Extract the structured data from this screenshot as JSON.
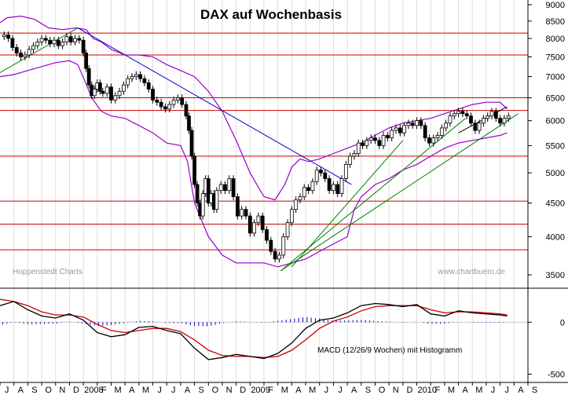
{
  "chart_data": {
    "type": "line",
    "title": "DAX auf Wochenbasis",
    "credit_left": "Hoppenstedt Charts",
    "credit_right": "www.chartbuero.de",
    "macd_label": "MACD (12/26/9 Wochen) mit Histogramm",
    "price_axis": {
      "scale": "log",
      "range": [
        3350,
        9150
      ],
      "ticks": [
        {
          "value": 9000,
          "label": "9000"
        },
        {
          "value": 8500,
          "label": "8500"
        },
        {
          "value": 8000,
          "label": "8000"
        },
        {
          "value": 7500,
          "label": "7500"
        },
        {
          "value": 7000,
          "label": "7000"
        },
        {
          "value": 6500,
          "label": "6500"
        },
        {
          "value": 6000,
          "label": "6000"
        },
        {
          "value": 5500,
          "label": "5500"
        },
        {
          "value": 5000,
          "label": "5000"
        },
        {
          "value": 4500,
          "label": "4500"
        },
        {
          "value": 4000,
          "label": "4000"
        },
        {
          "value": 3500,
          "label": "3500"
        }
      ]
    },
    "macd_axis": {
      "range": [
        -580,
        320
      ],
      "ticks": [
        {
          "value": 0,
          "label": "0"
        },
        {
          "value": -500,
          "label": "-500"
        }
      ]
    },
    "time_axis": {
      "start": "2007-07",
      "end": "2010-09",
      "labels": [
        "J",
        "A",
        "S",
        "O",
        "N",
        "D",
        "2008",
        "F",
        "M",
        "A",
        "M",
        "J",
        "J",
        "A",
        "S",
        "O",
        "N",
        "D",
        "2009",
        "F",
        "M",
        "A",
        "M",
        "J",
        "J",
        "A",
        "S",
        "O",
        "N",
        "D",
        "2010",
        "F",
        "M",
        "A",
        "M",
        "J",
        "J",
        "A",
        "S"
      ]
    },
    "horizontal_levels": [
      8150,
      7550,
      6500,
      6220,
      5300,
      4530,
      4180,
      3820
    ],
    "trendlines": [
      {
        "color": "#0000cc",
        "from": {
          "t": 5.6,
          "v": 8300
        },
        "to": {
          "t": 25.3,
          "v": 4800
        }
      },
      {
        "color": "#008000",
        "from": {
          "t": 0.0,
          "v": 7100
        },
        "to": {
          "t": 5.6,
          "v": 8300
        }
      },
      {
        "color": "#008000",
        "from": {
          "t": 20.2,
          "v": 3550
        },
        "to": {
          "t": 37.3,
          "v": 6150
        }
      },
      {
        "color": "#008000",
        "from": {
          "t": 20.2,
          "v": 3550
        },
        "to": {
          "t": 33.5,
          "v": 6050
        }
      },
      {
        "color": "#008000",
        "from": {
          "t": 21.0,
          "v": 3600
        },
        "to": {
          "t": 29.0,
          "v": 5600
        }
      },
      {
        "color": "#000000",
        "from": {
          "t": 33.0,
          "v": 5750
        },
        "to": {
          "t": 36.5,
          "v": 6300
        }
      }
    ],
    "bollinger_upper": [
      [
        0.0,
        8450
      ],
      [
        0.5,
        8600
      ],
      [
        1.5,
        8650
      ],
      [
        2.5,
        8550
      ],
      [
        3.5,
        8300
      ],
      [
        4.5,
        8250
      ],
      [
        5.5,
        8300
      ],
      [
        6.2,
        8250
      ],
      [
        6.7,
        8000
      ],
      [
        7.3,
        7900
      ],
      [
        8.0,
        7700
      ],
      [
        9.0,
        7550
      ],
      [
        10.0,
        7550
      ],
      [
        11.0,
        7500
      ],
      [
        12.0,
        7300
      ],
      [
        13.0,
        7150
      ],
      [
        14.0,
        7000
      ],
      [
        15.0,
        6650
      ],
      [
        16.0,
        6200
      ],
      [
        17.0,
        5600
      ],
      [
        18.0,
        5000
      ],
      [
        19.0,
        4600
      ],
      [
        19.8,
        4550
      ],
      [
        20.5,
        4800
      ],
      [
        21.0,
        5100
      ],
      [
        21.6,
        5250
      ],
      [
        22.2,
        5200
      ],
      [
        23.0,
        5250
      ],
      [
        24.0,
        5350
      ],
      [
        25.0,
        5450
      ],
      [
        26.0,
        5550
      ],
      [
        27.0,
        5700
      ],
      [
        28.0,
        5850
      ],
      [
        29.0,
        5950
      ],
      [
        30.0,
        6000
      ],
      [
        31.0,
        6050
      ],
      [
        32.0,
        6150
      ],
      [
        33.0,
        6250
      ],
      [
        34.0,
        6350
      ],
      [
        35.0,
        6400
      ],
      [
        36.0,
        6400
      ],
      [
        36.5,
        6250
      ]
    ],
    "bollinger_lower": [
      [
        0.0,
        7000
      ],
      [
        1.0,
        7050
      ],
      [
        2.0,
        7150
      ],
      [
        3.0,
        7250
      ],
      [
        4.0,
        7350
      ],
      [
        5.0,
        7400
      ],
      [
        5.6,
        7300
      ],
      [
        6.1,
        6900
      ],
      [
        6.6,
        6500
      ],
      [
        7.3,
        6200
      ],
      [
        8.0,
        6100
      ],
      [
        9.0,
        6050
      ],
      [
        10.0,
        5900
      ],
      [
        11.0,
        5750
      ],
      [
        12.0,
        5550
      ],
      [
        13.0,
        5500
      ],
      [
        13.5,
        5200
      ],
      [
        14.0,
        4500
      ],
      [
        15.0,
        4000
      ],
      [
        16.0,
        3750
      ],
      [
        17.0,
        3650
      ],
      [
        18.0,
        3650
      ],
      [
        19.0,
        3650
      ],
      [
        20.0,
        3600
      ],
      [
        21.0,
        3650
      ],
      [
        22.0,
        3700
      ],
      [
        23.0,
        3800
      ],
      [
        24.0,
        3900
      ],
      [
        25.0,
        4000
      ],
      [
        25.5,
        4400
      ],
      [
        26.0,
        4600
      ],
      [
        27.0,
        4800
      ],
      [
        28.0,
        4900
      ],
      [
        29.0,
        5050
      ],
      [
        30.0,
        5150
      ],
      [
        31.0,
        5300
      ],
      [
        32.0,
        5450
      ],
      [
        33.0,
        5550
      ],
      [
        34.0,
        5600
      ],
      [
        35.0,
        5650
      ],
      [
        36.0,
        5700
      ],
      [
        36.5,
        5750
      ]
    ],
    "weekly_price": [
      [
        0.0,
        8050
      ],
      [
        0.3,
        8100
      ],
      [
        0.6,
        8000
      ],
      [
        0.9,
        7750
      ],
      [
        1.2,
        7600
      ],
      [
        1.5,
        7500
      ],
      [
        1.8,
        7550
      ],
      [
        2.1,
        7700
      ],
      [
        2.4,
        7800
      ],
      [
        2.7,
        7900
      ],
      [
        3.0,
        8000
      ],
      [
        3.3,
        7950
      ],
      [
        3.6,
        7850
      ],
      [
        3.9,
        7950
      ],
      [
        4.2,
        7800
      ],
      [
        4.5,
        7900
      ],
      [
        4.8,
        8050
      ],
      [
        5.1,
        7900
      ],
      [
        5.4,
        8000
      ],
      [
        5.7,
        7950
      ],
      [
        6.0,
        7600
      ],
      [
        6.2,
        7200
      ],
      [
        6.4,
        6800
      ],
      [
        6.6,
        6550
      ],
      [
        6.8,
        6700
      ],
      [
        7.0,
        6850
      ],
      [
        7.2,
        6650
      ],
      [
        7.4,
        6600
      ],
      [
        7.7,
        6750
      ],
      [
        8.0,
        6450
      ],
      [
        8.3,
        6550
      ],
      [
        8.6,
        6650
      ],
      [
        8.9,
        6800
      ],
      [
        9.2,
        6950
      ],
      [
        9.5,
        7000
      ],
      [
        9.8,
        7050
      ],
      [
        10.1,
        6950
      ],
      [
        10.4,
        6850
      ],
      [
        10.7,
        6700
      ],
      [
        11.0,
        6450
      ],
      [
        11.3,
        6400
      ],
      [
        11.6,
        6300
      ],
      [
        11.9,
        6250
      ],
      [
        12.2,
        6350
      ],
      [
        12.5,
        6450
      ],
      [
        12.8,
        6500
      ],
      [
        13.1,
        6350
      ],
      [
        13.4,
        6100
      ],
      [
        13.6,
        5800
      ],
      [
        13.8,
        5300
      ],
      [
        14.0,
        4800
      ],
      [
        14.2,
        4500
      ],
      [
        14.4,
        4300
      ],
      [
        14.6,
        4650
      ],
      [
        14.8,
        4900
      ],
      [
        15.0,
        4500
      ],
      [
        15.2,
        4650
      ],
      [
        15.4,
        4400
      ],
      [
        15.6,
        4700
      ],
      [
        15.9,
        4800
      ],
      [
        16.2,
        4700
      ],
      [
        16.5,
        4900
      ],
      [
        16.8,
        4600
      ],
      [
        17.1,
        4300
      ],
      [
        17.4,
        4400
      ],
      [
        17.7,
        4300
      ],
      [
        18.0,
        4050
      ],
      [
        18.3,
        4200
      ],
      [
        18.6,
        4300
      ],
      [
        18.9,
        4100
      ],
      [
        19.2,
        3950
      ],
      [
        19.5,
        3800
      ],
      [
        19.8,
        3700
      ],
      [
        20.1,
        3750
      ],
      [
        20.4,
        4000
      ],
      [
        20.7,
        4200
      ],
      [
        21.0,
        4400
      ],
      [
        21.3,
        4550
      ],
      [
        21.6,
        4600
      ],
      [
        21.9,
        4750
      ],
      [
        22.2,
        4700
      ],
      [
        22.5,
        4850
      ],
      [
        22.8,
        5050
      ],
      [
        23.1,
        5000
      ],
      [
        23.4,
        4900
      ],
      [
        23.7,
        4700
      ],
      [
        24.0,
        4800
      ],
      [
        24.3,
        4650
      ],
      [
        24.6,
        4900
      ],
      [
        24.9,
        5150
      ],
      [
        25.2,
        5300
      ],
      [
        25.5,
        5350
      ],
      [
        25.8,
        5550
      ],
      [
        26.1,
        5500
      ],
      [
        26.4,
        5600
      ],
      [
        26.7,
        5650
      ],
      [
        27.0,
        5600
      ],
      [
        27.3,
        5500
      ],
      [
        27.6,
        5700
      ],
      [
        27.9,
        5650
      ],
      [
        28.2,
        5800
      ],
      [
        28.5,
        5850
      ],
      [
        28.8,
        5750
      ],
      [
        29.1,
        5900
      ],
      [
        29.4,
        5950
      ],
      [
        29.7,
        5900
      ],
      [
        30.0,
        6000
      ],
      [
        30.3,
        5900
      ],
      [
        30.6,
        5650
      ],
      [
        30.9,
        5550
      ],
      [
        31.2,
        5650
      ],
      [
        31.5,
        5700
      ],
      [
        31.8,
        5850
      ],
      [
        32.1,
        5950
      ],
      [
        32.4,
        6100
      ],
      [
        32.7,
        6150
      ],
      [
        33.0,
        6200
      ],
      [
        33.3,
        6150
      ],
      [
        33.6,
        6100
      ],
      [
        33.9,
        5950
      ],
      [
        34.2,
        5800
      ],
      [
        34.5,
        5950
      ],
      [
        34.8,
        6050
      ],
      [
        35.1,
        6100
      ],
      [
        35.4,
        6200
      ],
      [
        35.7,
        6050
      ],
      [
        36.0,
        5950
      ],
      [
        36.3,
        6050
      ],
      [
        36.6,
        6100
      ]
    ],
    "macd_line": [
      [
        0.0,
        160
      ],
      [
        1.0,
        200
      ],
      [
        2.0,
        120
      ],
      [
        3.0,
        60
      ],
      [
        4.0,
        40
      ],
      [
        5.0,
        80
      ],
      [
        6.0,
        20
      ],
      [
        7.0,
        -100
      ],
      [
        8.0,
        -140
      ],
      [
        9.0,
        -120
      ],
      [
        10.0,
        -50
      ],
      [
        11.0,
        -40
      ],
      [
        12.0,
        -80
      ],
      [
        13.0,
        -110
      ],
      [
        14.0,
        -250
      ],
      [
        15.0,
        -360
      ],
      [
        16.0,
        -340
      ],
      [
        17.0,
        -310
      ],
      [
        18.0,
        -330
      ],
      [
        19.0,
        -350
      ],
      [
        20.0,
        -300
      ],
      [
        21.0,
        -200
      ],
      [
        22.0,
        -60
      ],
      [
        23.0,
        20
      ],
      [
        24.0,
        40
      ],
      [
        25.0,
        90
      ],
      [
        26.0,
        160
      ],
      [
        27.0,
        180
      ],
      [
        28.0,
        170
      ],
      [
        29.0,
        150
      ],
      [
        30.0,
        170
      ],
      [
        31.0,
        80
      ],
      [
        32.0,
        60
      ],
      [
        33.0,
        110
      ],
      [
        34.0,
        90
      ],
      [
        35.0,
        80
      ],
      [
        36.0,
        70
      ],
      [
        36.5,
        60
      ]
    ],
    "signal_line": [
      [
        0.0,
        220
      ],
      [
        1.0,
        200
      ],
      [
        2.0,
        160
      ],
      [
        3.0,
        100
      ],
      [
        4.0,
        70
      ],
      [
        5.0,
        70
      ],
      [
        6.0,
        50
      ],
      [
        7.0,
        -20
      ],
      [
        8.0,
        -80
      ],
      [
        9.0,
        -100
      ],
      [
        10.0,
        -80
      ],
      [
        11.0,
        -60
      ],
      [
        12.0,
        -60
      ],
      [
        13.0,
        -90
      ],
      [
        14.0,
        -170
      ],
      [
        15.0,
        -270
      ],
      [
        16.0,
        -320
      ],
      [
        17.0,
        -330
      ],
      [
        18.0,
        -330
      ],
      [
        19.0,
        -340
      ],
      [
        20.0,
        -330
      ],
      [
        21.0,
        -270
      ],
      [
        22.0,
        -170
      ],
      [
        23.0,
        -60
      ],
      [
        24.0,
        10
      ],
      [
        25.0,
        50
      ],
      [
        26.0,
        110
      ],
      [
        27.0,
        150
      ],
      [
        28.0,
        160
      ],
      [
        29.0,
        160
      ],
      [
        30.0,
        160
      ],
      [
        31.0,
        120
      ],
      [
        32.0,
        90
      ],
      [
        33.0,
        100
      ],
      [
        34.0,
        100
      ],
      [
        35.0,
        90
      ],
      [
        36.0,
        80
      ],
      [
        36.5,
        70
      ]
    ]
  }
}
